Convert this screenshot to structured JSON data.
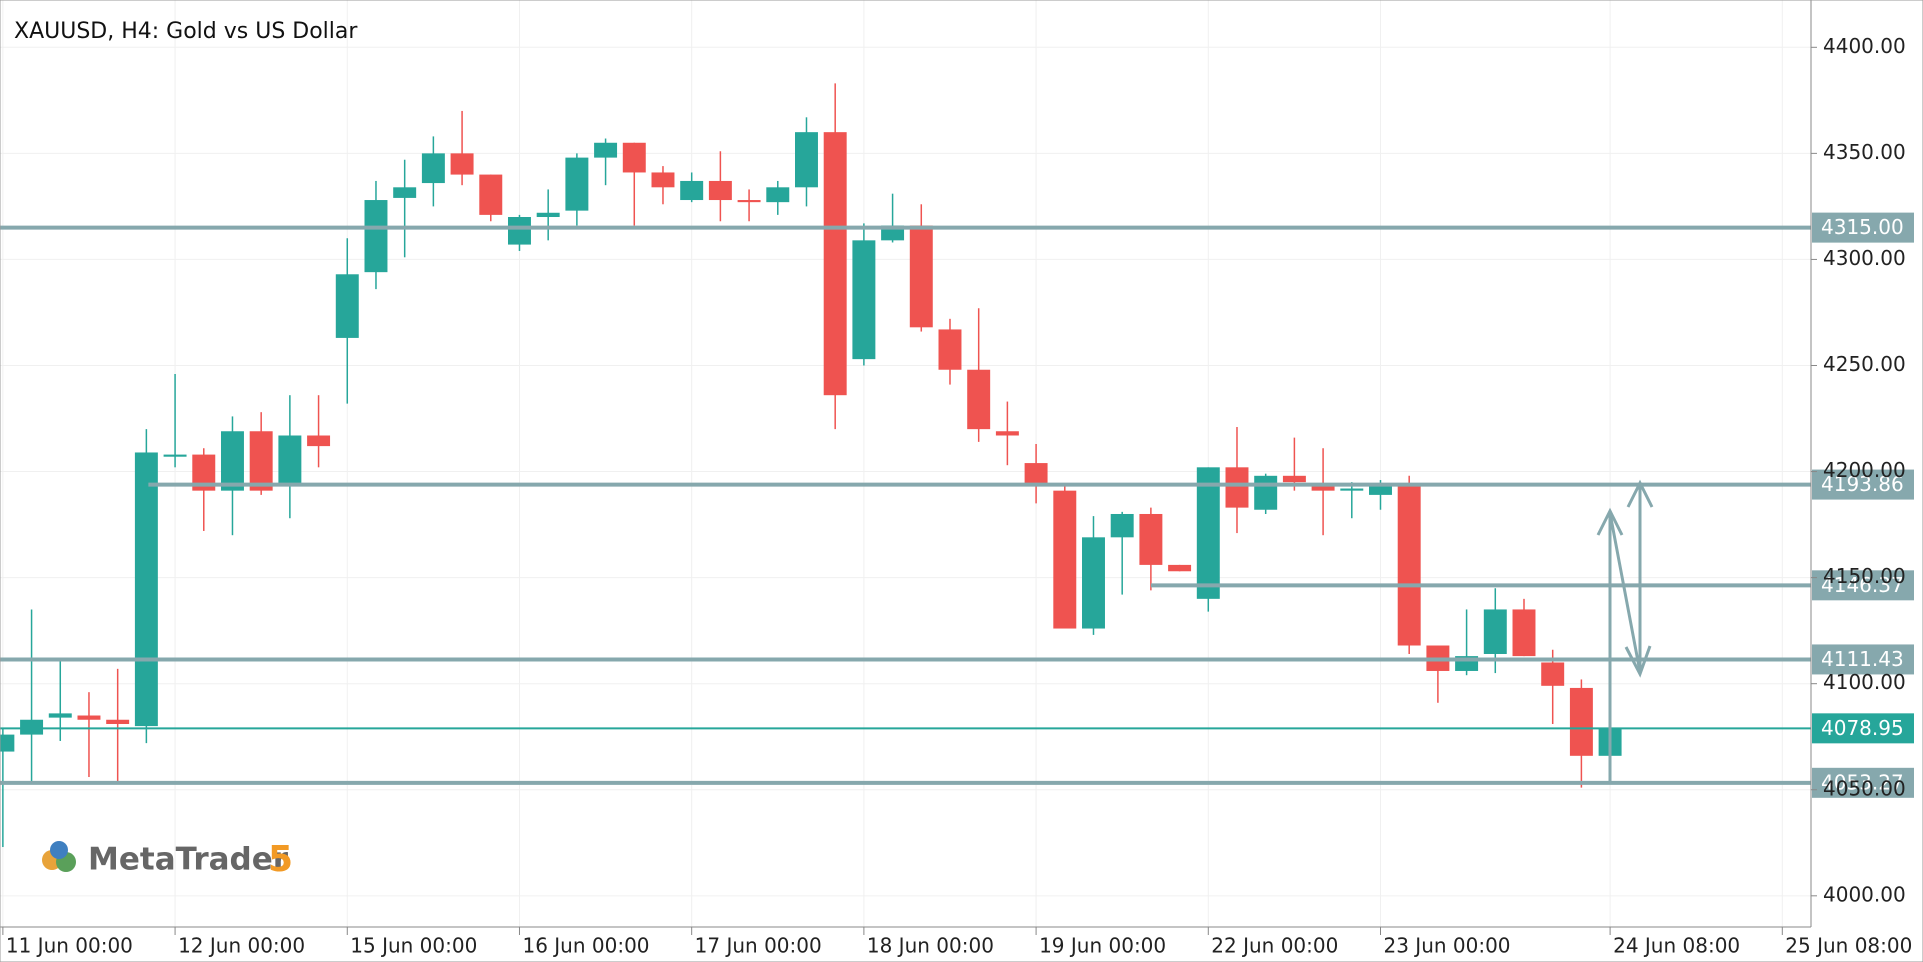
{
  "chart_data": {
    "type": "candlestick",
    "title": "XAUUSD, H4: Gold vs US Dollar",
    "logo_text": "MetaTrader",
    "logo_number": "5",
    "up_color": "#26a69a",
    "down_color": "#ef5350",
    "grid": true,
    "open": [
      4068,
      4076,
      4084,
      4085,
      4083,
      4080,
      4207,
      4208,
      4191,
      4219,
      4193,
      4217,
      4263,
      4294,
      4329,
      4336,
      4350,
      4340,
      4307,
      4320,
      4323,
      4348,
      4355,
      4341,
      4328,
      4337,
      4328,
      4327,
      4334,
      4360,
      4253,
      4309,
      4316,
      4267,
      4248,
      4219,
      4204,
      4191,
      4126,
      4169,
      4180,
      4156,
      4140,
      4202,
      4182,
      4198,
      4194,
      4191,
      4189,
      4193,
      4118,
      4106,
      4114,
      4135,
      4110,
      4098,
      4066
    ],
    "high": [
      4079,
      4135,
      4111,
      4096,
      4107,
      4220,
      4246,
      4211,
      4226,
      4228,
      4236,
      4236,
      4310,
      4337,
      4347,
      4358,
      4370,
      4340,
      4321,
      4333,
      4350,
      4357,
      4355,
      4344,
      4341,
      4351,
      4333,
      4337,
      4367,
      4383,
      4317,
      4331,
      4326,
      4272,
      4277,
      4233,
      4213,
      4194,
      4179,
      4181,
      4183,
      4156,
      4202,
      4221,
      4199,
      4216,
      4211,
      4195,
      4196,
      4198,
      4118,
      4135,
      4145,
      4140,
      4116,
      4102,
      4079
    ],
    "low": [
      4023,
      4054,
      4073,
      4056,
      4054,
      4072,
      4202,
      4172,
      4170,
      4189,
      4178,
      4202,
      4232,
      4286,
      4301,
      4325,
      4335,
      4318,
      4304,
      4309,
      4316,
      4335,
      4316,
      4326,
      4327,
      4318,
      4318,
      4321,
      4325,
      4220,
      4250,
      4308,
      4266,
      4241,
      4214,
      4203,
      4185,
      4126,
      4123,
      4142,
      4144,
      4153,
      4134,
      4171,
      4180,
      4191,
      4170,
      4178,
      4182,
      4114,
      4091,
      4104,
      4105,
      4113,
      4081,
      4051,
      4065
    ],
    "close": [
      4076,
      4083,
      4086,
      4083,
      4081,
      4209,
      4208,
      4191,
      4219,
      4191,
      4217,
      4212,
      4293,
      4328,
      4334,
      4350,
      4340,
      4321,
      4320,
      4322,
      4348,
      4355,
      4341,
      4334,
      4337,
      4328,
      4327,
      4334,
      4360,
      4236,
      4309,
      4316,
      4268,
      4248,
      4220,
      4217,
      4193,
      4126,
      4169,
      4180,
      4156,
      4153,
      4202,
      4183,
      4198,
      4195,
      4191,
      4192,
      4193,
      4118,
      4106,
      4113,
      4135,
      4113,
      4099,
      4066,
      4079
    ],
    "xlim": [
      -0.1,
      63
    ],
    "ylim": [
      3985.3,
      4422.3
    ],
    "yticks": [
      {
        "value": 4000,
        "label": "4000.00"
      },
      {
        "value": 4050,
        "label": "4050.00"
      },
      {
        "value": 4100,
        "label": "4100.00"
      },
      {
        "value": 4150,
        "label": "4150.00"
      },
      {
        "value": 4200,
        "label": "4200.00"
      },
      {
        "value": 4250,
        "label": "4250.00"
      },
      {
        "value": 4300,
        "label": "4300.00"
      },
      {
        "value": 4350,
        "label": "4350.00"
      },
      {
        "value": 4400,
        "label": "4400.00"
      }
    ],
    "xticks": [
      {
        "value": 0,
        "label": "11 Jun 00:00"
      },
      {
        "value": 6,
        "label": "12 Jun 00:00"
      },
      {
        "value": 12,
        "label": "15 Jun 00:00"
      },
      {
        "value": 18,
        "label": "16 Jun 00:00"
      },
      {
        "value": 24,
        "label": "17 Jun 00:00"
      },
      {
        "value": 30,
        "label": "18 Jun 00:00"
      },
      {
        "value": 36,
        "label": "19 Jun 00:00"
      },
      {
        "value": 42,
        "label": "22 Jun 00:00"
      },
      {
        "value": 48,
        "label": "23 Jun 00:00"
      },
      {
        "value": 56,
        "label": "24 Jun 08:00"
      },
      {
        "value": 62,
        "label": "25 Jun 08:00"
      }
    ],
    "levels": [
      {
        "value": 4315,
        "label": "4315.00",
        "color": "#86a8ad"
      },
      {
        "value": 4193.86,
        "label": "4193.86",
        "color": "#86a8ad"
      },
      {
        "value": 4146.37,
        "label": "4146.37",
        "color": "#86a8ad"
      },
      {
        "value": 4111.43,
        "label": "4111.43",
        "color": "#86a8ad"
      },
      {
        "value": 4078.95,
        "label": "4078.95",
        "color": "#26a69a"
      },
      {
        "value": 4053.27,
        "label": "4053.27",
        "color": "#86a8ad"
      }
    ]
  }
}
